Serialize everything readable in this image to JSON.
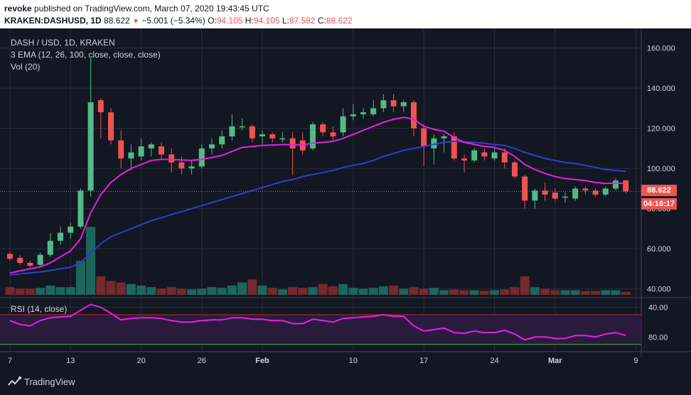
{
  "header": {
    "author": "revoke",
    "published_text": "published on TradingView.com, March 07, 2020 19:43:45 UTC",
    "symbol": "KRAKEN:DASHUSD, 1D",
    "last": "88.622",
    "change": "−5.001 (−5.34%)",
    "o_label": "O:",
    "o_value": "94.105",
    "h_label": "H:",
    "h_value": "94.105",
    "l_label": "L:",
    "l_value": "87.582",
    "c_label": "C:",
    "c_value": "88.622"
  },
  "legend": {
    "title": "DASH / USD, 1D, KRAKEN",
    "ema": "3 EMA (12, 26, 100, close, close, close)",
    "vol": "Vol (20)",
    "rsi": "RSI (14, close)"
  },
  "badges": {
    "last_price": "88.622",
    "countdown": "04:16:17"
  },
  "footer": {
    "brand": "TradingView"
  },
  "colors": {
    "background": "#131722",
    "up": "#26a69a",
    "up_candle": "#53b987",
    "down": "#ef5350",
    "ema_fast": "#e91ee6",
    "ema_slow": "#2f3ed0",
    "rsi_line": "#e91ee6",
    "rsi_band": "#2a1b3d",
    "grid": "#2a2e39"
  },
  "chart_data": {
    "type": "candlestick",
    "price_axis": {
      "ylim": [
        36,
        168
      ],
      "ticks": [
        40,
        60,
        80,
        100,
        120,
        140,
        160
      ],
      "tick_labels": [
        "40.000",
        "60.000",
        "80.000",
        "100.000",
        "120.000",
        "140.000",
        "160.000"
      ]
    },
    "x_axis": {
      "ticks": [
        {
          "index": 0,
          "label": "7"
        },
        {
          "index": 6,
          "label": "13"
        },
        {
          "index": 13,
          "label": "20"
        },
        {
          "index": 19,
          "label": "26"
        },
        {
          "index": 25,
          "label": "Feb"
        },
        {
          "index": 34,
          "label": "10"
        },
        {
          "index": 41,
          "label": "17"
        },
        {
          "index": 48,
          "label": "24"
        },
        {
          "index": 54,
          "label": "Mar"
        },
        {
          "index": 62,
          "label": "9"
        }
      ]
    },
    "candles": [
      {
        "o": 57.5,
        "h": 58.5,
        "l": 54.0,
        "c": 55.0,
        "v": 0.5
      },
      {
        "o": 55.5,
        "h": 57.0,
        "l": 52.0,
        "c": 53.0,
        "v": 0.4
      },
      {
        "o": 53.0,
        "h": 54.0,
        "l": 50.5,
        "c": 51.5,
        "v": 0.4
      },
      {
        "o": 52.0,
        "h": 58.0,
        "l": 51.0,
        "c": 57.0,
        "v": 0.45
      },
      {
        "o": 57.0,
        "h": 68.0,
        "l": 56.0,
        "c": 64.0,
        "v": 0.6
      },
      {
        "o": 64.0,
        "h": 71.0,
        "l": 62.0,
        "c": 68.0,
        "v": 0.5
      },
      {
        "o": 68.0,
        "h": 73.0,
        "l": 65.0,
        "c": 71.0,
        "v": 0.5
      },
      {
        "o": 71.0,
        "h": 90.0,
        "l": 70.0,
        "c": 89.0,
        "v": 2.2
      },
      {
        "o": 89.0,
        "h": 155.0,
        "l": 86.0,
        "c": 133.0,
        "v": 4.4
      },
      {
        "o": 134.0,
        "h": 135.0,
        "l": 115.0,
        "c": 128.0,
        "v": 1.2
      },
      {
        "o": 128.0,
        "h": 130.0,
        "l": 112.0,
        "c": 114.0,
        "v": 0.9
      },
      {
        "o": 114.0,
        "h": 119.0,
        "l": 100.0,
        "c": 105.0,
        "v": 0.8
      },
      {
        "o": 105.0,
        "h": 112.0,
        "l": 99.0,
        "c": 108.0,
        "v": 0.7
      },
      {
        "o": 106.0,
        "h": 115.0,
        "l": 104.0,
        "c": 111.0,
        "v": 0.6
      },
      {
        "o": 110.0,
        "h": 113.0,
        "l": 106.0,
        "c": 112.0,
        "v": 0.5
      },
      {
        "o": 111.0,
        "h": 113.0,
        "l": 105.0,
        "c": 107.0,
        "v": 0.4
      },
      {
        "o": 107.0,
        "h": 110.0,
        "l": 98.0,
        "c": 103.0,
        "v": 0.5
      },
      {
        "o": 103.0,
        "h": 106.0,
        "l": 97.0,
        "c": 100.0,
        "v": 0.4
      },
      {
        "o": 100.0,
        "h": 104.0,
        "l": 97.0,
        "c": 101.0,
        "v": 0.35
      },
      {
        "o": 101.0,
        "h": 112.0,
        "l": 100.0,
        "c": 110.0,
        "v": 0.4
      },
      {
        "o": 110.0,
        "h": 115.0,
        "l": 107.0,
        "c": 112.0,
        "v": 0.5
      },
      {
        "o": 112.0,
        "h": 119.0,
        "l": 110.0,
        "c": 116.0,
        "v": 0.45
      },
      {
        "o": 116.0,
        "h": 127.0,
        "l": 114.0,
        "c": 121.0,
        "v": 0.6
      },
      {
        "o": 121.0,
        "h": 125.0,
        "l": 119.0,
        "c": 121.0,
        "v": 0.8
      },
      {
        "o": 121.0,
        "h": 122.0,
        "l": 113.0,
        "c": 115.0,
        "v": 1.0
      },
      {
        "o": 116.0,
        "h": 119.0,
        "l": 112.0,
        "c": 117.0,
        "v": 0.6
      },
      {
        "o": 117.0,
        "h": 118.0,
        "l": 113.0,
        "c": 115.0,
        "v": 0.45
      },
      {
        "o": 115.0,
        "h": 118.0,
        "l": 113.0,
        "c": 115.0,
        "v": 0.35
      },
      {
        "o": 115.0,
        "h": 118.0,
        "l": 97.0,
        "c": 110.0,
        "v": 0.5
      },
      {
        "o": 114.0,
        "h": 118.0,
        "l": 107.0,
        "c": 109.0,
        "v": 0.45
      },
      {
        "o": 110.0,
        "h": 123.0,
        "l": 109.0,
        "c": 122.0,
        "v": 0.5
      },
      {
        "o": 122.0,
        "h": 123.0,
        "l": 116.0,
        "c": 118.0,
        "v": 0.7
      },
      {
        "o": 118.0,
        "h": 121.0,
        "l": 114.0,
        "c": 116.0,
        "v": 0.55
      },
      {
        "o": 118.0,
        "h": 130.0,
        "l": 116.0,
        "c": 126.0,
        "v": 0.7
      },
      {
        "o": 126.0,
        "h": 132.0,
        "l": 124.0,
        "c": 127.0,
        "v": 0.45
      },
      {
        "o": 127.0,
        "h": 130.0,
        "l": 125.0,
        "c": 128.0,
        "v": 0.4
      },
      {
        "o": 127.0,
        "h": 134.0,
        "l": 126.0,
        "c": 130.0,
        "v": 0.45
      },
      {
        "o": 130.0,
        "h": 137.0,
        "l": 128.0,
        "c": 134.0,
        "v": 0.55
      },
      {
        "o": 134.0,
        "h": 137.0,
        "l": 128.0,
        "c": 131.0,
        "v": 0.6
      },
      {
        "o": 131.0,
        "h": 134.0,
        "l": 128.0,
        "c": 133.0,
        "v": 0.4
      },
      {
        "o": 133.0,
        "h": 134.0,
        "l": 116.0,
        "c": 120.0,
        "v": 0.5
      },
      {
        "o": 120.0,
        "h": 122.0,
        "l": 101.0,
        "c": 111.0,
        "v": 0.4
      },
      {
        "o": 110.0,
        "h": 117.0,
        "l": 102.0,
        "c": 115.0,
        "v": 0.45
      },
      {
        "o": 115.0,
        "h": 117.0,
        "l": 108.0,
        "c": 116.0,
        "v": 0.3
      },
      {
        "o": 116.0,
        "h": 118.0,
        "l": 104.0,
        "c": 105.0,
        "v": 0.35
      },
      {
        "o": 105.0,
        "h": 107.0,
        "l": 98.0,
        "c": 104.0,
        "v": 0.3
      },
      {
        "o": 104.0,
        "h": 110.0,
        "l": 103.0,
        "c": 109.0,
        "v": 0.3
      },
      {
        "o": 108.0,
        "h": 110.0,
        "l": 104.0,
        "c": 106.0,
        "v": 0.25
      },
      {
        "o": 105.0,
        "h": 110.0,
        "l": 104.0,
        "c": 108.0,
        "v": 0.3
      },
      {
        "o": 108.0,
        "h": 110.0,
        "l": 100.0,
        "c": 103.0,
        "v": 0.35
      },
      {
        "o": 103.0,
        "h": 104.0,
        "l": 95.0,
        "c": 96.0,
        "v": 0.5
      },
      {
        "o": 96.0,
        "h": 97.0,
        "l": 80.0,
        "c": 84.0,
        "v": 1.2
      },
      {
        "o": 84.0,
        "h": 90.0,
        "l": 80.0,
        "c": 89.0,
        "v": 0.5
      },
      {
        "o": 89.0,
        "h": 93.0,
        "l": 84.0,
        "c": 87.0,
        "v": 0.4
      },
      {
        "o": 88.0,
        "h": 90.0,
        "l": 84.0,
        "c": 85.0,
        "v": 0.3
      },
      {
        "o": 86.0,
        "h": 88.0,
        "l": 83.0,
        "c": 86.0,
        "v": 0.3
      },
      {
        "o": 85.0,
        "h": 91.0,
        "l": 84.0,
        "c": 90.0,
        "v": 0.3
      },
      {
        "o": 90.0,
        "h": 91.0,
        "l": 87.0,
        "c": 89.0,
        "v": 0.25
      },
      {
        "o": 89.0,
        "h": 90.0,
        "l": 86.0,
        "c": 87.0,
        "v": 0.25
      },
      {
        "o": 87.0,
        "h": 91.0,
        "l": 86.0,
        "c": 90.0,
        "v": 0.3
      },
      {
        "o": 90.0,
        "h": 95.0,
        "l": 89.0,
        "c": 94.0,
        "v": 0.3
      },
      {
        "o": 94.1,
        "h": 94.1,
        "l": 87.6,
        "c": 88.6,
        "v": 0.2
      }
    ],
    "ema_fast": [
      48,
      49,
      50,
      51,
      53,
      56,
      59,
      65,
      78,
      87,
      93,
      97,
      100,
      102,
      104,
      104.5,
      104.5,
      104.2,
      104,
      104.5,
      105.5,
      106.5,
      108.5,
      110.5,
      111,
      111.5,
      111.7,
      111.9,
      111.8,
      111.8,
      112.5,
      113,
      113.5,
      115,
      117,
      119,
      121,
      123,
      124.5,
      125.5,
      124.5,
      121,
      119.5,
      118.5,
      115.5,
      113,
      112,
      111,
      110.5,
      109,
      106,
      102,
      99.5,
      97.5,
      96,
      95,
      94.5,
      94,
      93,
      92.5,
      92.7,
      92.5
    ],
    "ema_slow": [
      47,
      47.5,
      48,
      48.5,
      49.2,
      50,
      50.8,
      53,
      58,
      62.5,
      66,
      68,
      70,
      72,
      74,
      75.5,
      77,
      78.5,
      80,
      81.5,
      83,
      84.5,
      86,
      87.5,
      89,
      90.5,
      92,
      93.5,
      94.5,
      96,
      97,
      98,
      99,
      100.5,
      101.5,
      102.5,
      104,
      106,
      107.5,
      109,
      110,
      111,
      112,
      113,
      113.5,
      113.3,
      113,
      112.5,
      112,
      111.5,
      110,
      108,
      106.5,
      105,
      104,
      103,
      102.5,
      101.5,
      100.5,
      99.5,
      99,
      98.5
    ],
    "rsi": {
      "ylim": [
        25,
        92
      ],
      "ticks": [
        40,
        80
      ],
      "tick_labels": [
        "80.00",
        "40.00"
      ],
      "overbought": 70,
      "oversold": 30,
      "values": [
        62,
        57,
        55,
        62,
        66,
        67,
        68,
        76,
        84,
        80,
        72,
        63,
        65,
        66,
        66,
        65,
        62,
        60,
        60,
        62,
        63,
        63,
        66,
        66,
        64,
        64,
        62,
        62,
        58,
        58,
        64,
        62,
        60,
        65,
        66,
        67,
        68,
        70,
        68,
        68,
        55,
        48,
        50,
        52,
        46,
        45,
        48,
        46,
        46,
        49,
        44,
        36,
        40,
        40,
        38,
        38,
        42,
        42,
        40,
        44,
        46,
        42
      ]
    },
    "volume": {
      "max": 4.6
    }
  }
}
